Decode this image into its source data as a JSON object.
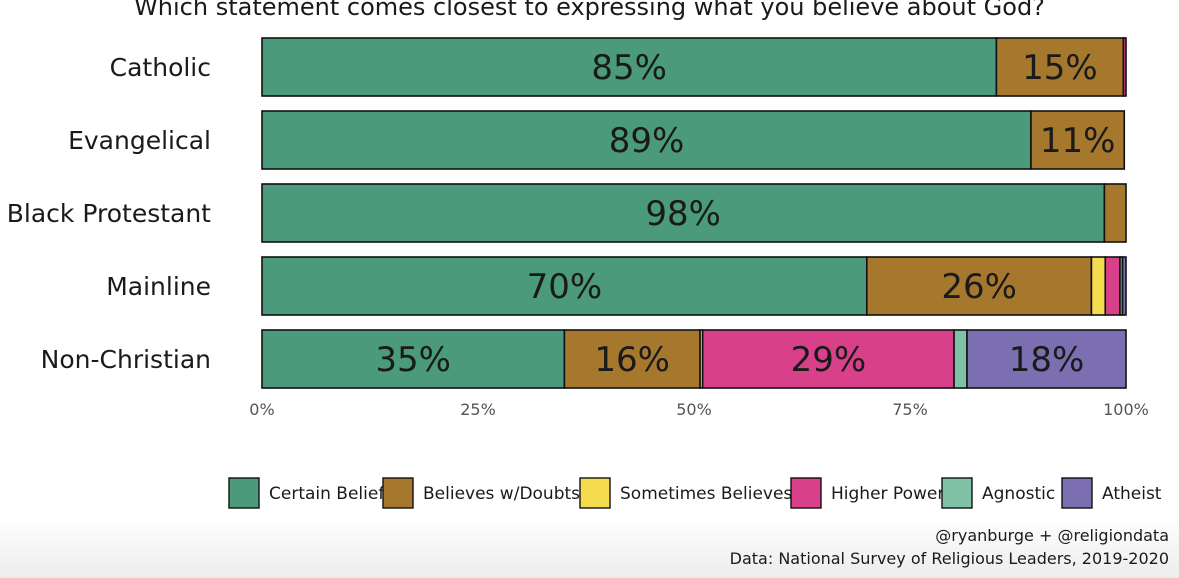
{
  "chart_data": {
    "type": "bar",
    "orientation": "horizontal",
    "stacked": true,
    "title": "Which statement comes closest to expressing what you believe about God?",
    "categories": [
      "Catholic",
      "Evangelical",
      "Black Protestant",
      "Mainline",
      "Non-Christian"
    ],
    "series": [
      {
        "name": "Certain Belief",
        "color": "#4a9a7b",
        "values": [
          85,
          89,
          97.5,
          70,
          35
        ]
      },
      {
        "name": "Believes w/Doubts",
        "color": "#a6782e",
        "values": [
          14.7,
          10.8,
          2.5,
          26,
          15.7
        ]
      },
      {
        "name": "Sometimes Believes",
        "color": "#f5dc4f",
        "values": [
          0,
          0,
          0,
          1.6,
          0.3
        ]
      },
      {
        "name": "Higher Power",
        "color": "#d8408a",
        "values": [
          0.3,
          0,
          0,
          1.7,
          29.1
        ]
      },
      {
        "name": "Agnostic",
        "color": "#7fc2a6",
        "values": [
          0,
          0,
          0,
          0.3,
          1.5
        ]
      },
      {
        "name": "Atheist",
        "color": "#7b6fb2",
        "values": [
          0,
          0,
          0,
          0.4,
          18.4
        ]
      }
    ],
    "data_labels": [
      [
        "85%",
        "15%",
        "",
        "",
        "",
        ""
      ],
      [
        "89%",
        "11%",
        "",
        "",
        "",
        ""
      ],
      [
        "98%",
        "",
        "",
        "",
        "",
        ""
      ],
      [
        "70%",
        "26%",
        "",
        "",
        "",
        ""
      ],
      [
        "35%",
        "16%",
        "",
        "29%",
        "",
        "18%"
      ]
    ],
    "x_ticks": [
      "0%",
      "25%",
      "50%",
      "75%",
      "100%"
    ],
    "x_tick_values": [
      0,
      25,
      50,
      75,
      100
    ],
    "xlim": [
      0,
      100
    ],
    "legend_position": "bottom",
    "grid": false
  },
  "credits": {
    "line1": "@ryanburge + @religiondata",
    "line2": "Data: National Survey of Religious Leaders, 2019-2020"
  }
}
